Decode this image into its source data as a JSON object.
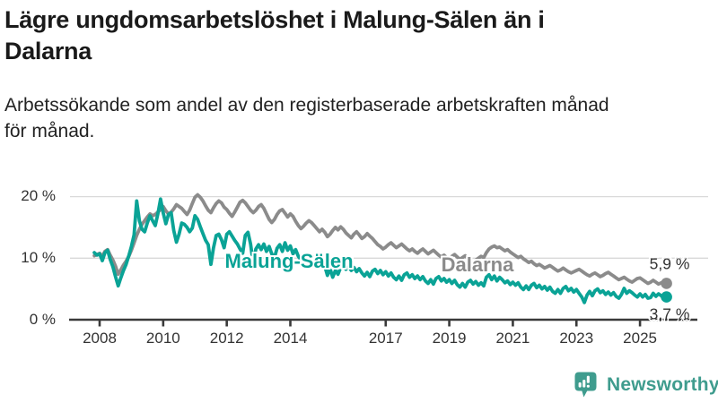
{
  "header": {
    "title_lines": [
      "Lägre ungdomsarbetslöshet i Malung-Sälen än i",
      "Dalarna"
    ],
    "subtitle_lines": [
      "Arbetssökande som andel av den registerbaserade arbetskraften månad",
      "för månad."
    ]
  },
  "chart_data": {
    "type": "line",
    "title": "Lägre ungdomsarbetslöshet i Malung-Sälen än i Dalarna",
    "subtitle": "Arbetssökande som andel av den registerbaserade arbetskraften månad för månad.",
    "xlabel": "",
    "ylabel": "",
    "x_unit": "month",
    "x_start": "2007-11",
    "x_end": "2025-11",
    "x_start_decimal": 2007.8333,
    "ylim": [
      0,
      22
    ],
    "grid": "horizontal",
    "y_ticks": [
      {
        "value": 20,
        "label": "20 %"
      },
      {
        "value": 10,
        "label": "10 %"
      },
      {
        "value": 0,
        "label": "0 %"
      }
    ],
    "x_ticks": [
      {
        "value": 2008,
        "label": "2008"
      },
      {
        "value": 2010,
        "label": "2010"
      },
      {
        "value": 2012,
        "label": "2012"
      },
      {
        "value": 2014,
        "label": "2014"
      },
      {
        "value": 2017,
        "label": "2017"
      },
      {
        "value": 2019,
        "label": "2019"
      },
      {
        "value": 2021,
        "label": "2021"
      },
      {
        "value": 2023,
        "label": "2023"
      },
      {
        "value": 2025,
        "label": "2025"
      }
    ],
    "series": [
      {
        "name": "Malung-Sälen",
        "color": "#0aa396",
        "end_label": "3,7 %",
        "end_value": 3.7,
        "label_pos": {
          "x": 322,
          "y": 292
        },
        "end_label_dy": 19,
        "values": [
          10.9,
          10.5,
          10.7,
          9.6,
          10.9,
          11.3,
          9.8,
          8.6,
          7.0,
          5.5,
          6.8,
          8.0,
          9.0,
          10.4,
          11.9,
          13.8,
          19.3,
          16.1,
          14.7,
          14.3,
          15.7,
          16.9,
          16.1,
          15.3,
          17.2,
          19.6,
          17.4,
          15.6,
          17.1,
          17.4,
          14.5,
          12.6,
          13.9,
          15.7,
          15.5,
          15.0,
          14.3,
          14.9,
          16.9,
          16.3,
          15.1,
          14.0,
          12.9,
          12.2,
          9.0,
          11.7,
          13.7,
          13.9,
          13.0,
          11.7,
          13.9,
          14.3,
          13.6,
          12.9,
          12.3,
          11.5,
          10.8,
          13.7,
          14.2,
          12.3,
          9.1,
          11.5,
          12.2,
          11.4,
          12.3,
          11.1,
          11.9,
          10.7,
          10.1,
          11.6,
          12.2,
          11.1,
          12.5,
          11.3,
          12.0,
          10.7,
          11.4,
          10.3,
          9.7,
          9.2,
          8.7,
          9.9,
          10.5,
          9.6,
          10.2,
          9.1,
          9.5,
          8.7,
          7.2,
          8.3,
          6.9,
          8.0,
          7.4,
          8.5,
          8.9,
          8.2,
          8.7,
          8.0,
          8.5,
          7.8,
          8.3,
          7.6,
          7.1,
          7.7,
          7.0,
          7.9,
          8.2,
          7.5,
          8.0,
          7.3,
          7.8,
          7.1,
          7.6,
          6.9,
          6.5,
          7.1,
          6.4,
          7.3,
          7.6,
          6.9,
          7.3,
          6.7,
          7.1,
          6.5,
          7.0,
          6.3,
          5.9,
          6.5,
          5.8,
          6.7,
          7.0,
          6.3,
          6.7,
          6.1,
          6.5,
          5.9,
          6.4,
          5.7,
          5.3,
          5.9,
          5.3,
          6.1,
          6.4,
          5.8,
          6.2,
          5.6,
          6.0,
          5.5,
          6.9,
          7.3,
          6.5,
          7.1,
          6.3,
          6.9,
          6.5,
          6.0,
          6.3,
          5.7,
          6.1,
          5.6,
          6.0,
          5.3,
          4.9,
          5.5,
          4.9,
          5.6,
          5.9,
          5.2,
          5.6,
          5.0,
          5.4,
          4.8,
          5.3,
          4.6,
          4.3,
          4.9,
          4.3,
          5.1,
          5.4,
          4.7,
          5.1,
          4.5,
          4.9,
          4.3,
          3.7,
          2.8,
          4.0,
          4.6,
          3.9,
          4.7,
          5.0,
          4.4,
          4.7,
          4.1,
          4.5,
          4.0,
          4.4,
          3.8,
          3.5,
          4.1,
          5.1,
          4.3,
          4.7,
          4.4,
          4.0,
          3.7,
          4.2,
          3.7,
          4.1,
          3.5,
          3.6,
          4.3,
          3.8,
          4.2,
          3.9,
          3.5,
          3.7
        ]
      },
      {
        "name": "Dalarna",
        "color": "#8b8b8b",
        "end_label": "5,9 %",
        "end_value": 5.9,
        "label_pos": {
          "x": 532,
          "y": 296
        },
        "end_label_dy": -21,
        "values": [
          10.4,
          10.6,
          10.8,
          10.3,
          11.1,
          11.4,
          10.5,
          9.7,
          8.7,
          7.4,
          8.1,
          8.9,
          9.5,
          10.3,
          11.3,
          12.5,
          13.7,
          14.7,
          15.5,
          16.1,
          16.7,
          17.2,
          16.9,
          17.1,
          17.5,
          17.9,
          18.4,
          17.7,
          17.2,
          17.5,
          18.0,
          18.7,
          18.4,
          18.1,
          17.6,
          17.1,
          17.8,
          18.9,
          19.9,
          20.3,
          19.9,
          19.3,
          18.5,
          17.8,
          17.4,
          18.2,
          18.9,
          19.3,
          19.0,
          18.3,
          17.9,
          17.3,
          16.8,
          17.5,
          18.3,
          19.1,
          19.4,
          19.0,
          18.4,
          17.8,
          17.4,
          17.8,
          18.4,
          18.7,
          18.1,
          17.2,
          16.3,
          15.8,
          16.3,
          17.1,
          17.7,
          17.9,
          17.3,
          16.7,
          17.2,
          16.8,
          16.0,
          15.3,
          14.8,
          15.2,
          15.7,
          16.1,
          15.8,
          15.3,
          14.8,
          14.3,
          14.7,
          14.2,
          13.5,
          13.9,
          14.5,
          15.0,
          14.6,
          15.1,
          14.7,
          14.1,
          13.7,
          13.3,
          13.9,
          14.3,
          13.8,
          13.2,
          13.5,
          14.0,
          13.6,
          13.2,
          12.7,
          12.2,
          11.9,
          11.5,
          11.8,
          12.2,
          12.5,
          12.1,
          11.7,
          12.0,
          12.3,
          11.9,
          11.5,
          11.2,
          11.5,
          11.1,
          10.8,
          11.2,
          11.5,
          11.1,
          10.7,
          11.0,
          11.3,
          10.9,
          10.5,
          10.2,
          10.5,
          10.1,
          9.9,
          10.3,
          10.6,
          10.2,
          9.8,
          10.1,
          10.4,
          10.0,
          9.7,
          9.4,
          9.7,
          10.0,
          10.3,
          10.1,
          10.9,
          11.5,
          11.8,
          12.0,
          11.7,
          11.8,
          11.5,
          11.2,
          11.4,
          11.0,
          10.7,
          10.4,
          10.1,
          10.3,
          9.9,
          9.6,
          9.3,
          9.5,
          9.1,
          8.8,
          9.0,
          8.7,
          8.4,
          8.6,
          8.8,
          8.5,
          8.2,
          7.9,
          8.1,
          8.4,
          8.1,
          7.8,
          7.6,
          7.8,
          8.0,
          8.2,
          7.9,
          7.6,
          7.3,
          7.1,
          7.4,
          7.6,
          7.3,
          7.0,
          7.2,
          7.5,
          7.7,
          7.4,
          7.1,
          6.8,
          6.5,
          6.7,
          6.9,
          6.6,
          6.3,
          6.1,
          6.4,
          6.7,
          6.8,
          6.5,
          6.2,
          5.9,
          6.1,
          6.4,
          6.1,
          5.8,
          6.0,
          6.2,
          5.9
        ]
      }
    ],
    "colors": {
      "malung_salen": "#0aa396",
      "dalarna": "#8b8b8b",
      "grid": "#d9d9d9",
      "axis": "#3a3a3a",
      "text": "#333333"
    }
  },
  "footer": {
    "brand": "Newsworthy",
    "brand_color": "#3f9c8e"
  }
}
